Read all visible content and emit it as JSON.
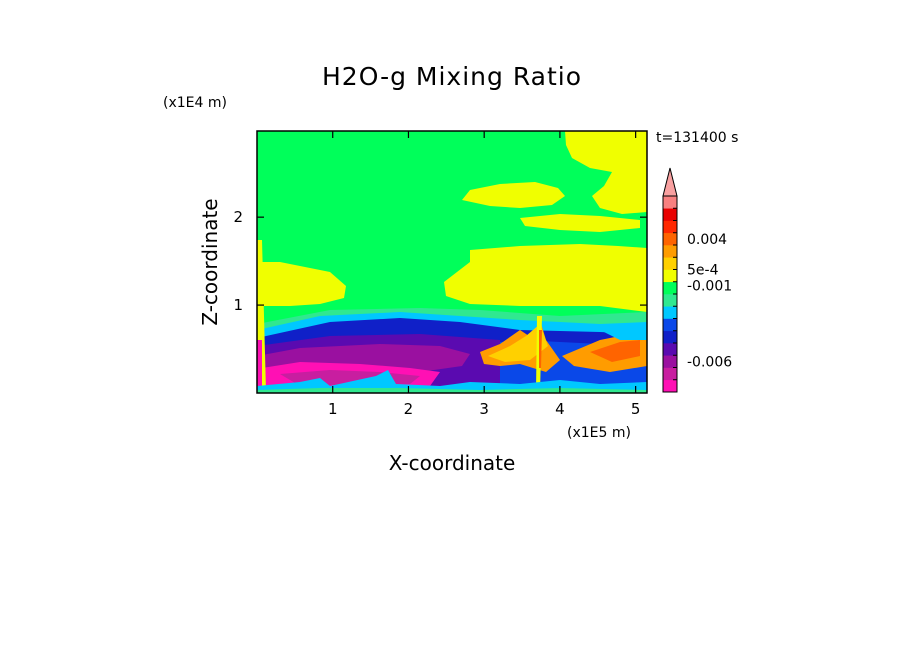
{
  "chart_data": {
    "type": "heatmap",
    "title": "H2O-g Mixing Ratio",
    "xlabel": "X-coordinate",
    "ylabel": "Z-coordinate",
    "x_unit": "(x1E5 m)",
    "y_unit": "(x1E4 m)",
    "time_label": "t=131400 s",
    "xlim": [
      0,
      5.15
    ],
    "ylim": [
      0,
      2.98
    ],
    "xticks": [
      1,
      2,
      3,
      4,
      5
    ],
    "yticks": [
      1,
      2
    ],
    "colorbar": {
      "orientation": "vertical",
      "extend": "max",
      "colors": [
        "#ff10b4",
        "#c81ea0",
        "#9a10a0",
        "#5a0ab0",
        "#1020c8",
        "#0a48e8",
        "#00c8ff",
        "#30e890",
        "#00ff5a",
        "#f0ff00",
        "#ffd000",
        "#ff9c00",
        "#ff6400",
        "#ff2800",
        "#e80000",
        "#f88080"
      ],
      "labels": [
        {
          "text": "0.004",
          "level": 12.5
        },
        {
          "text": "5e-4",
          "level": 10
        },
        {
          "text": "-0.001",
          "level": 8.7
        },
        {
          "text": "-0.006",
          "level": 2.5
        }
      ]
    },
    "regions": [
      {
        "name": "upper",
        "value_class": "green",
        "x": [
          0,
          5.15
        ],
        "z": [
          0.9,
          2.98
        ]
      },
      {
        "name": "cloud-band-left",
        "value_class": "yellow",
        "x": [
          0.1,
          1.2
        ],
        "z": [
          0.95,
          1.45
        ]
      },
      {
        "name": "cloud-band-right",
        "value_class": "yellow",
        "x": [
          2.4,
          5.15
        ],
        "z": [
          1.0,
          1.65
        ]
      },
      {
        "name": "upper-cloud",
        "value_class": "yellow",
        "x": [
          2.8,
          4.1
        ],
        "z": [
          2.3,
          2.45
        ]
      },
      {
        "name": "top-right-cloud",
        "value_class": "yellow",
        "x": [
          4.15,
          5.15
        ],
        "z": [
          2.2,
          2.98
        ]
      },
      {
        "name": "low-dry-layer",
        "value_class": "blue",
        "x": [
          0,
          5.15
        ],
        "z": [
          0,
          0.85
        ]
      },
      {
        "name": "surface-moist",
        "value_class": "magenta",
        "x": [
          0,
          2.6
        ],
        "z": [
          0,
          0.35
        ]
      },
      {
        "name": "plume",
        "value_class": "orange",
        "x": [
          3.3,
          3.95
        ],
        "z": [
          0.3,
          0.8
        ]
      },
      {
        "name": "right-orange",
        "value_class": "orange",
        "x": [
          4.1,
          5.15
        ],
        "z": [
          0.35,
          0.65
        ]
      }
    ]
  }
}
